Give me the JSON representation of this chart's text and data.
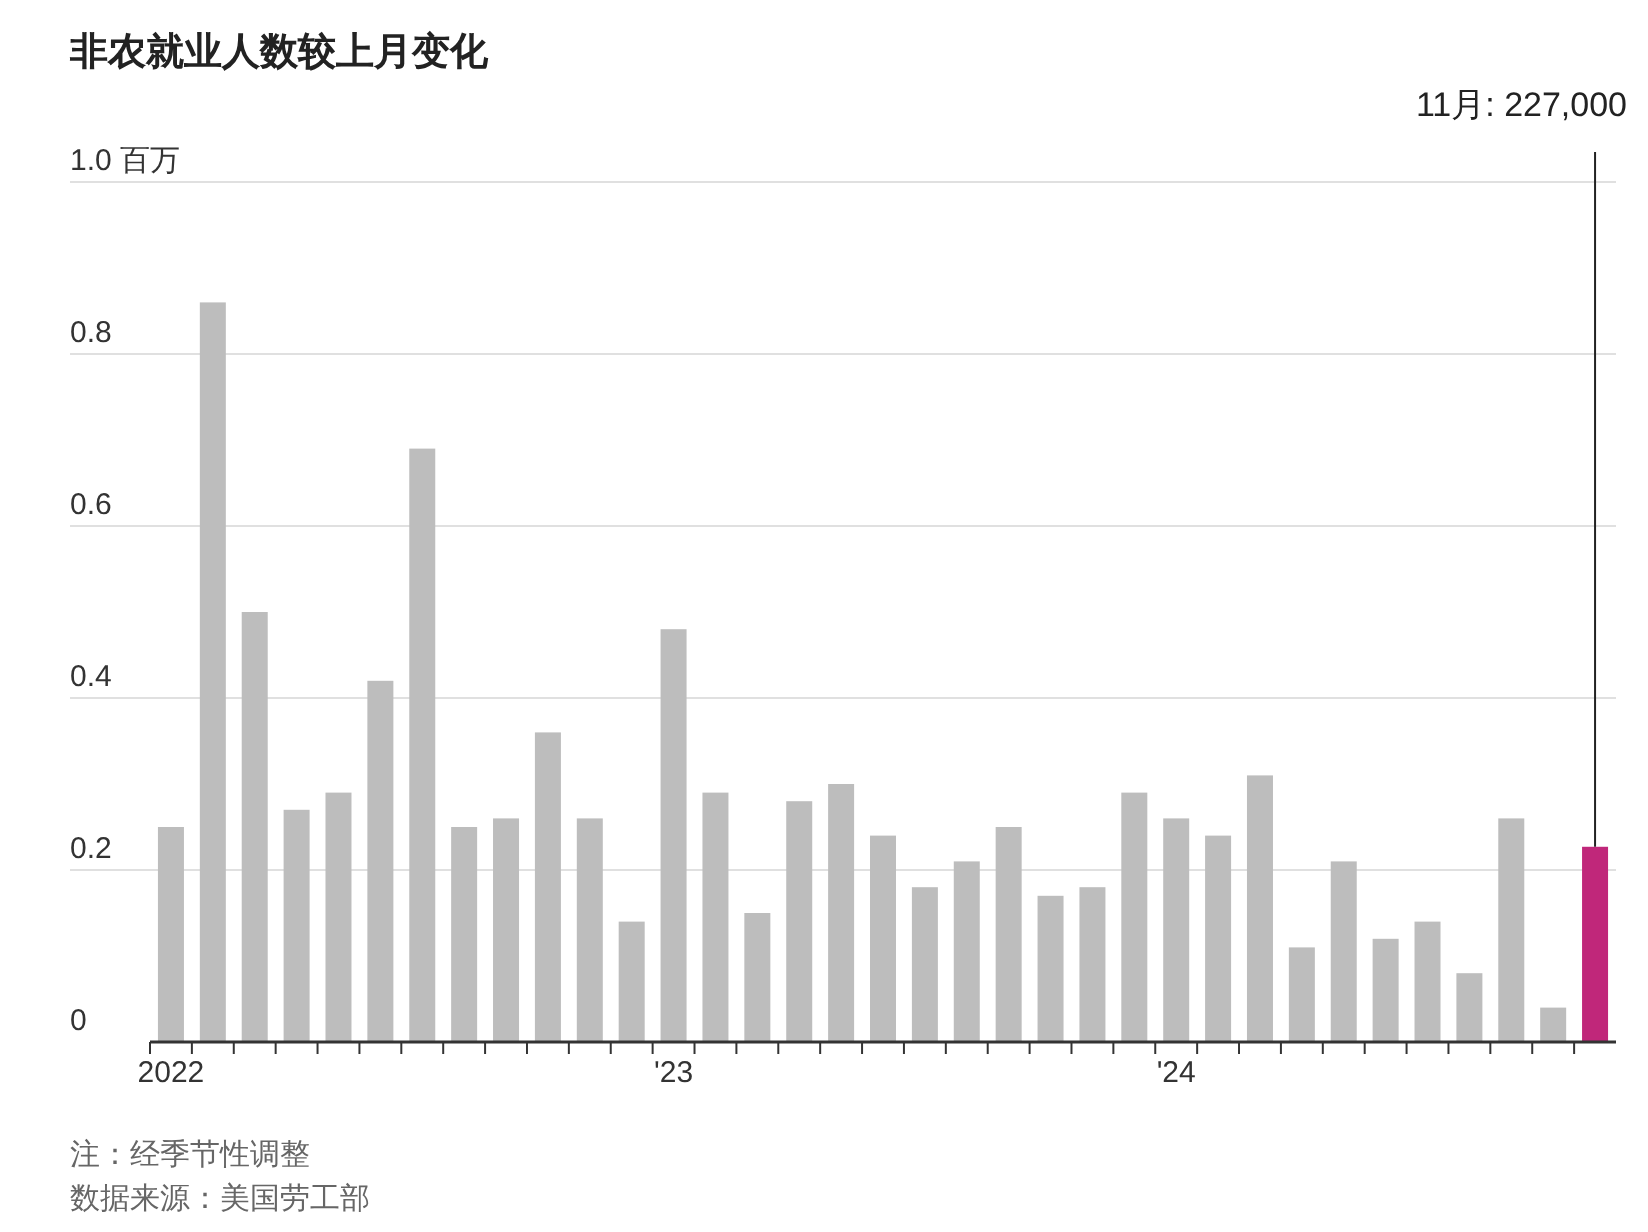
{
  "chart_data": {
    "type": "bar",
    "title": "非农就业人数较上月变化",
    "categories": [
      "2022",
      null,
      null,
      null,
      null,
      null,
      null,
      null,
      null,
      null,
      null,
      null,
      "'23",
      null,
      null,
      null,
      null,
      null,
      null,
      null,
      null,
      null,
      null,
      null,
      "'24",
      null,
      null,
      null,
      null,
      null,
      null,
      null,
      null,
      null,
      null
    ],
    "values": [
      0.25,
      0.86,
      0.5,
      0.27,
      0.29,
      0.42,
      0.69,
      0.25,
      0.26,
      0.36,
      0.26,
      0.14,
      0.48,
      0.29,
      0.15,
      0.28,
      0.3,
      0.24,
      0.18,
      0.21,
      0.25,
      0.17,
      0.18,
      0.29,
      0.26,
      0.24,
      0.31,
      0.11,
      0.21,
      0.12,
      0.14,
      0.08,
      0.26,
      0.04,
      0.227
    ],
    "colors": [
      "#bdbdbd",
      "#bdbdbd",
      "#bdbdbd",
      "#bdbdbd",
      "#bdbdbd",
      "#bdbdbd",
      "#bdbdbd",
      "#bdbdbd",
      "#bdbdbd",
      "#bdbdbd",
      "#bdbdbd",
      "#bdbdbd",
      "#bdbdbd",
      "#bdbdbd",
      "#bdbdbd",
      "#bdbdbd",
      "#bdbdbd",
      "#bdbdbd",
      "#bdbdbd",
      "#bdbdbd",
      "#bdbdbd",
      "#bdbdbd",
      "#bdbdbd",
      "#bdbdbd",
      "#bdbdbd",
      "#bdbdbd",
      "#bdbdbd",
      "#bdbdbd",
      "#bdbdbd",
      "#bdbdbd",
      "#bdbdbd",
      "#bdbdbd",
      "#bdbdbd",
      "#bdbdbd",
      "#c0277a"
    ],
    "ylim": [
      0,
      1.0
    ],
    "yticks": [
      0,
      0.2,
      0.4,
      0.6,
      0.8,
      {
        "value": 1.0,
        "label": "1.0 百万"
      }
    ],
    "grid": "y",
    "annotations": [
      "11月: 227,000",
      "注：经季节性调整",
      "数据来源：美国劳工部"
    ]
  }
}
